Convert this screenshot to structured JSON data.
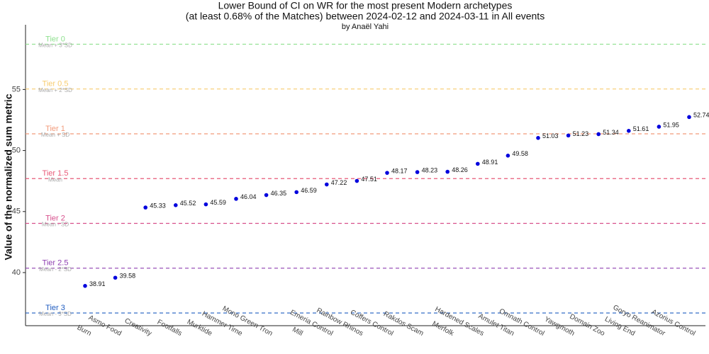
{
  "chart_data": {
    "type": "scatter",
    "title": [
      "Lower Bound of CI on WR for the most present Modern archetypes",
      "(at least 0.68% of the Matches) between 2024-02-12 and 2024-03-11 in All events"
    ],
    "subtitle": "by Anaël Yahi",
    "y_label": "Value of the normalized sum metric",
    "categories": [
      "Burn",
      "Asmo Food",
      "Creativity",
      "Footfalls",
      "Murktide",
      "Hammer Time",
      "Mono Green Tron",
      "Mill",
      "Emeria Control",
      "Rainbow Rhinos",
      "Coffers Control",
      "Rakdos Scam",
      "Merfolk",
      "Hardened Scales",
      "Amulet Titan",
      "Omnath Control",
      "Yawgmoth",
      "Domain Zoo",
      "Living End",
      "Goryo Reanimator",
      "Azorius Control"
    ],
    "values": [
      38.91,
      39.58,
      45.33,
      45.52,
      45.59,
      46.04,
      46.35,
      46.59,
      47.22,
      47.51,
      48.17,
      48.23,
      48.26,
      48.91,
      49.58,
      51.03,
      51.23,
      51.34,
      51.61,
      51.95,
      52.74
    ],
    "color": "#0000dd",
    "ylim": [
      35.65,
      60.3
    ],
    "yticks": [
      40,
      45,
      50,
      55
    ],
    "grid": false,
    "reference_lines": [
      {
        "label": "Tier 0",
        "sublabel": "Mean + 3*SD",
        "value": 58.71,
        "color": "#8ee08e"
      },
      {
        "label": "Tier 0.5",
        "sublabel": "Mean + 2*SD",
        "value": 55.04,
        "color": "#f7cc6e"
      },
      {
        "label": "Tier 1",
        "sublabel": "Mean + SD",
        "value": 51.37,
        "color": "#f29a7a"
      },
      {
        "label": "Tier 1.5",
        "sublabel": "Mean",
        "value": 47.7,
        "color": "#e85a78"
      },
      {
        "label": "Tier 2",
        "sublabel": "Mean - SD",
        "value": 44.03,
        "color": "#d74f8c"
      },
      {
        "label": "Tier 2.5",
        "sublabel": "Mean - 2*SD",
        "value": 40.36,
        "color": "#8e3fb0"
      },
      {
        "label": "Tier 3",
        "sublabel": "Mean - 3*SD",
        "value": 36.69,
        "color": "#1f5cc0"
      }
    ]
  }
}
